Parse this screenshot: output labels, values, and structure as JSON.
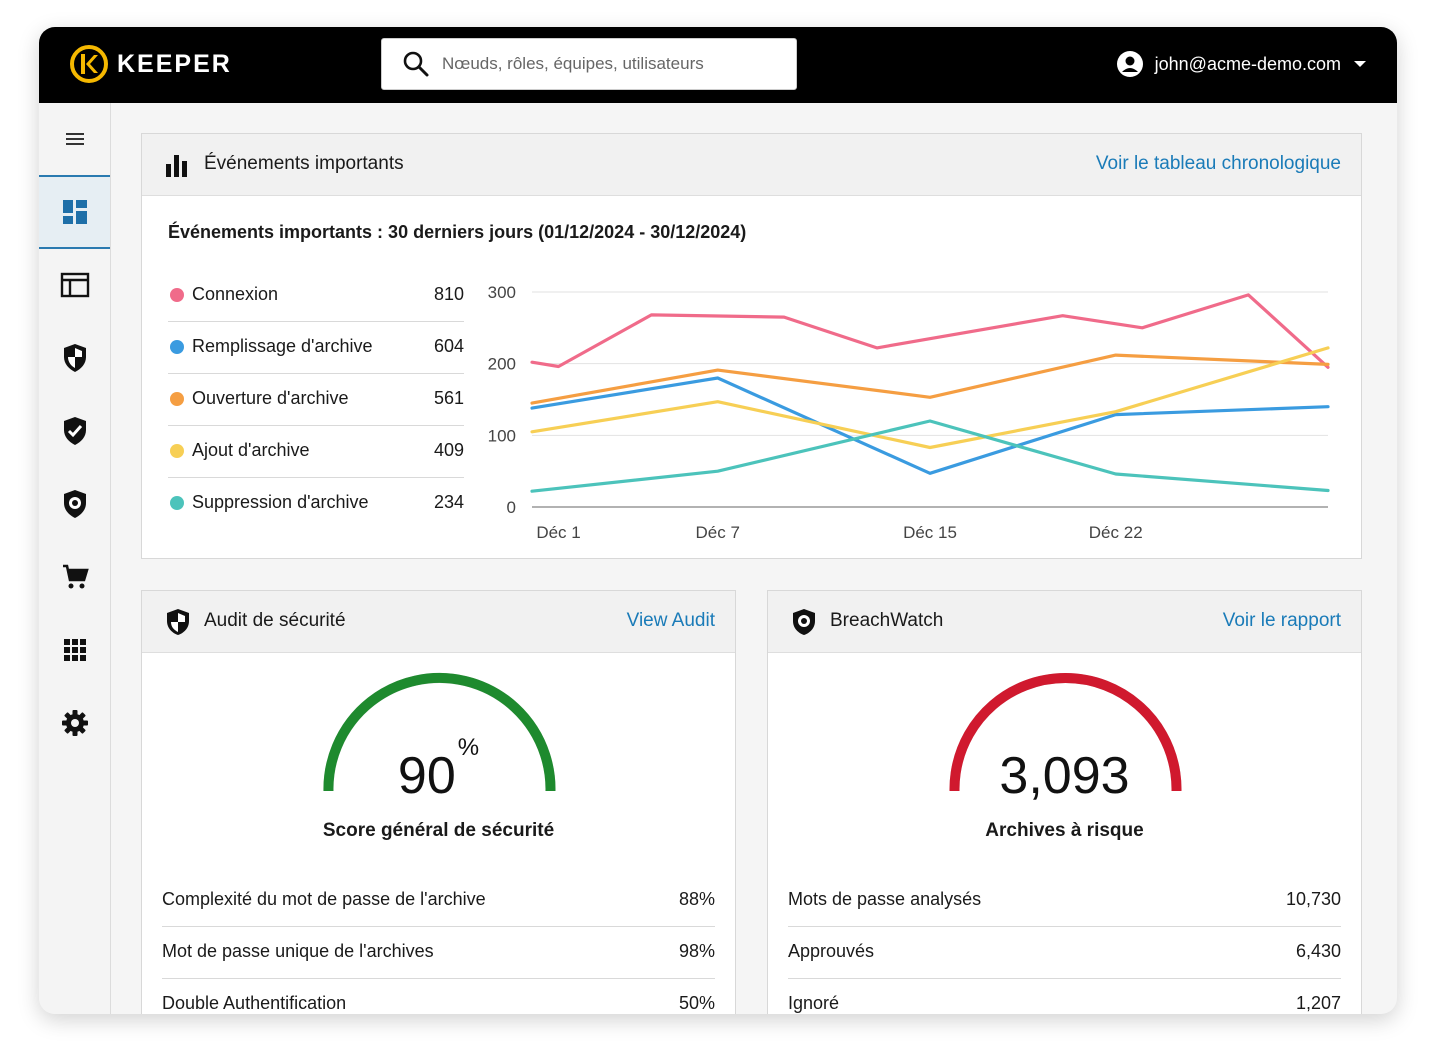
{
  "app": {
    "brand": "KEEPER"
  },
  "search": {
    "placeholder": "Nœuds, rôles, équipes, utilisateurs"
  },
  "user": {
    "email": "john@acme-demo.com"
  },
  "events": {
    "title": "Événements importants",
    "link": "Voir le tableau chronologique",
    "subtitle": "Événements importants : 30 derniers jours (01/12/2024 - 30/12/2024)",
    "legend": [
      {
        "name": "Connexion",
        "value": "810",
        "color": "#f06b8a"
      },
      {
        "name": "Remplissage d'archive",
        "value": "604",
        "color": "#3a9be0"
      },
      {
        "name": "Ouverture d'archive",
        "value": "561",
        "color": "#f59e42"
      },
      {
        "name": "Ajout d'archive",
        "value": "409",
        "color": "#f7cf55"
      },
      {
        "name": "Suppression d'archive",
        "value": "234",
        "color": "#4cc3bb"
      }
    ]
  },
  "chart_data": {
    "type": "line",
    "x": [
      0,
      1,
      5,
      10,
      15,
      20,
      24,
      27,
      30
    ],
    "xticks": [
      "Déc 1",
      "Déc 7",
      "Déc 15",
      "Déc 22"
    ],
    "xtick_positions": [
      1,
      7,
      15,
      22
    ],
    "xlim": [
      0,
      30
    ],
    "ylim": [
      0,
      300
    ],
    "yticks": [
      "0",
      "100",
      "200",
      "300"
    ],
    "grid": true,
    "series": [
      {
        "name": "Connexion",
        "color": "#f06b8a",
        "points": [
          [
            0,
            202
          ],
          [
            1,
            196
          ],
          [
            4.5,
            268
          ],
          [
            9.5,
            265
          ],
          [
            13,
            222
          ],
          [
            20,
            267
          ],
          [
            23,
            250
          ],
          [
            27,
            296
          ],
          [
            30,
            195
          ]
        ]
      },
      {
        "name": "Remplissage d'archive",
        "color": "#3a9be0",
        "points": [
          [
            0,
            138
          ],
          [
            7,
            180
          ],
          [
            15,
            47
          ],
          [
            22,
            129
          ],
          [
            30,
            140
          ]
        ]
      },
      {
        "name": "Ouverture d'archive",
        "color": "#f59e42",
        "points": [
          [
            0,
            145
          ],
          [
            7,
            191
          ],
          [
            15,
            153
          ],
          [
            22,
            212
          ],
          [
            30,
            199
          ]
        ]
      },
      {
        "name": "Ajout d'archive",
        "color": "#f7cf55",
        "points": [
          [
            0,
            105
          ],
          [
            7,
            147
          ],
          [
            15,
            83
          ],
          [
            22,
            133
          ],
          [
            30,
            222
          ]
        ]
      },
      {
        "name": "Suppression d'archive",
        "color": "#4cc3bb",
        "points": [
          [
            0,
            22
          ],
          [
            7,
            50
          ],
          [
            15,
            120
          ],
          [
            22,
            46
          ],
          [
            30,
            23
          ]
        ]
      }
    ]
  },
  "audit": {
    "title": "Audit de sécurité",
    "link": "View Audit",
    "gauge_value": "90",
    "gauge_unit": "%",
    "gauge_fraction": 0.9,
    "gauge_color": "#1e8a2e",
    "gauge_label": "Score général de sécurité",
    "rows": [
      {
        "name": "Complexité du mot de passe de l'archive",
        "value": "88%"
      },
      {
        "name": "Mot de passe unique de l'archives",
        "value": "98%"
      },
      {
        "name": "Double Authentification",
        "value": "50%"
      }
    ]
  },
  "breachwatch": {
    "title": "BreachWatch",
    "link": "Voir le rapport",
    "gauge_value": "3,093",
    "gauge_fraction": 1.0,
    "gauge_color": "#d0192e",
    "gauge_label": "Archives à risque",
    "rows": [
      {
        "name": "Mots de passe analysés",
        "value": "10,730"
      },
      {
        "name": "Approuvés",
        "value": "6,430"
      },
      {
        "name": "Ignoré",
        "value": "1,207"
      }
    ]
  },
  "sidebar": {
    "items": [
      {
        "icon": "menu-icon"
      },
      {
        "icon": "dashboard-icon",
        "active": true
      },
      {
        "icon": "admin-console-icon"
      },
      {
        "icon": "security-audit-icon"
      },
      {
        "icon": "compliance-check-icon"
      },
      {
        "icon": "breachwatch-icon"
      },
      {
        "icon": "cart-icon"
      },
      {
        "icon": "apps-grid-icon"
      },
      {
        "icon": "settings-gear-icon"
      }
    ]
  }
}
